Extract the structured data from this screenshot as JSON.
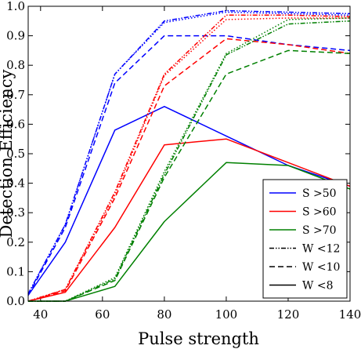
{
  "chart_data": {
    "type": "line",
    "title": "",
    "xlabel": "Pulse strength",
    "ylabel": "Detection Efficiency",
    "xlim": [
      36,
      140
    ],
    "ylim": [
      0,
      1
    ],
    "xticks": [
      40,
      60,
      80,
      100,
      120,
      140
    ],
    "yticks": [
      0.0,
      0.1,
      0.2,
      0.3,
      0.4,
      0.5,
      0.6,
      0.7,
      0.8,
      0.9,
      1.0
    ],
    "xtick_labels": [
      "40",
      "60",
      "80",
      "100",
      "120",
      "140"
    ],
    "ytick_labels": [
      "0.0",
      "0.1",
      "0.2",
      "0.3",
      "0.4",
      "0.5",
      "0.6",
      "0.7",
      "0.8",
      "0.9",
      "1.0"
    ],
    "grid": false,
    "legend_position": "bottom-right",
    "colors": {
      "s50": "#0000ff",
      "s60": "#ff0000",
      "s70": "#008000",
      "ink": "#000000"
    },
    "legend": [
      {
        "label": "S >50",
        "color": "#0000ff",
        "style": "solid"
      },
      {
        "label": "S >60",
        "color": "#ff0000",
        "style": "solid"
      },
      {
        "label": "S >70",
        "color": "#008000",
        "style": "solid"
      },
      {
        "label": "W <12",
        "color": "#000000",
        "style": "dashdotdot"
      },
      {
        "label": "W <10",
        "color": "#000000",
        "style": "dashed"
      },
      {
        "label": "W <8",
        "color": "#000000",
        "style": "solid"
      }
    ],
    "x": [
      36,
      48,
      64,
      80,
      100,
      120,
      140
    ],
    "series": [
      {
        "color": "#0000ff",
        "style": "solid",
        "values": [
          0.02,
          0.2,
          0.58,
          0.66,
          0.56,
          0.46,
          0.39
        ]
      },
      {
        "color": "#0000ff",
        "style": "dashed",
        "values": [
          0.02,
          0.25,
          0.74,
          0.9,
          0.9,
          0.87,
          0.85
        ]
      },
      {
        "color": "#0000ff",
        "style": "dashdotdot",
        "values": [
          0.025,
          0.26,
          0.77,
          0.95,
          0.985,
          0.98,
          0.975
        ]
      },
      {
        "color": "#0000ff",
        "style": "dotted",
        "values": [
          0.025,
          0.26,
          0.77,
          0.945,
          0.98,
          0.975,
          0.97
        ]
      },
      {
        "color": "#ff0000",
        "style": "solid",
        "values": [
          0.0,
          0.03,
          0.25,
          0.53,
          0.55,
          0.47,
          0.39
        ]
      },
      {
        "color": "#ff0000",
        "style": "dashed",
        "values": [
          0.0,
          0.035,
          0.35,
          0.73,
          0.89,
          0.87,
          0.84
        ]
      },
      {
        "color": "#ff0000",
        "style": "dashdotdot",
        "values": [
          0.0,
          0.04,
          0.37,
          0.77,
          0.97,
          0.97,
          0.965
        ]
      },
      {
        "color": "#ff0000",
        "style": "dotted",
        "values": [
          0.0,
          0.04,
          0.36,
          0.765,
          0.955,
          0.96,
          0.96
        ]
      },
      {
        "color": "#008000",
        "style": "solid",
        "values": [
          0.0,
          0.0,
          0.05,
          0.27,
          0.47,
          0.46,
          0.38
        ]
      },
      {
        "color": "#008000",
        "style": "dashed",
        "values": [
          0.0,
          0.0,
          0.07,
          0.42,
          0.77,
          0.85,
          0.84
        ]
      },
      {
        "color": "#008000",
        "style": "dashdotdot",
        "values": [
          0.0,
          0.0,
          0.075,
          0.43,
          0.835,
          0.94,
          0.95
        ]
      },
      {
        "color": "#008000",
        "style": "dotted",
        "values": [
          0.0,
          0.0,
          0.08,
          0.44,
          0.84,
          0.955,
          0.96
        ]
      }
    ]
  }
}
